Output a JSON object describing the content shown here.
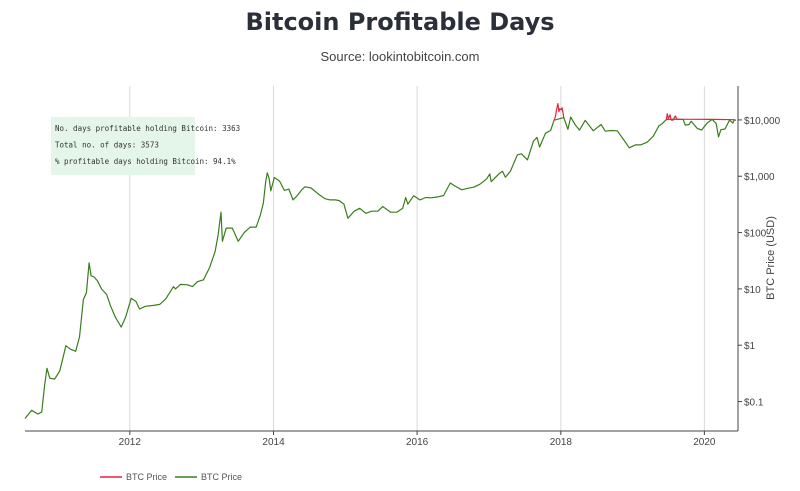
{
  "chart_data": {
    "type": "line",
    "title": "Bitcoin Profitable Days",
    "subtitle": "Source: lookintobitcoin.com",
    "xlabel": "",
    "ylabel": "BTC Price (USD)",
    "y_scale": "log",
    "xlim": [
      "2010-07-17",
      "2020-06-20"
    ],
    "ylim": [
      0.03,
      40000
    ],
    "x_ticks": [
      "2012",
      "2014",
      "2016",
      "2018",
      "2020"
    ],
    "y_ticks": [
      {
        "value": 0.1,
        "label": "$0.1"
      },
      {
        "value": 1,
        "label": "$1"
      },
      {
        "value": 10,
        "label": "$10"
      },
      {
        "value": 100,
        "label": "$100"
      },
      {
        "value": 1000,
        "label": "$1,000"
      },
      {
        "value": 10000,
        "label": "$10,000"
      }
    ],
    "grid": "vertical",
    "legend": "bottom-left",
    "series": [
      {
        "name": "BTC Price",
        "color": "#e8213f",
        "values": [
          [
            "2017-11-28",
            9900
          ],
          [
            "2017-12-05",
            11600
          ],
          [
            "2017-12-10",
            15000
          ],
          [
            "2017-12-17",
            19500
          ],
          [
            "2017-12-22",
            14000
          ],
          [
            "2017-12-27",
            15800
          ],
          [
            "2018-01-03",
            15100
          ],
          [
            "2018-01-07",
            16500
          ],
          [
            "2018-01-12",
            13500
          ],
          [
            "2018-01-16",
            11000
          ],
          [
            "2019-06-22",
            10200
          ],
          [
            "2019-06-26",
            12900
          ],
          [
            "2019-07-02",
            10600
          ],
          [
            "2019-07-10",
            12300
          ],
          [
            "2019-07-16",
            10000
          ],
          [
            "2019-07-25",
            9900
          ],
          [
            "2019-08-06",
            11800
          ],
          [
            "2019-08-15",
            10300
          ],
          [
            "2020-02-10",
            10200
          ],
          [
            "2020-06-01",
            10100
          ]
        ]
      },
      {
        "name": "BTC Price",
        "color": "#3a7d1e",
        "values": [
          [
            "2010-07-17",
            0.05
          ],
          [
            "2010-08-20",
            0.07
          ],
          [
            "2010-09-20",
            0.06
          ],
          [
            "2010-10-10",
            0.065
          ],
          [
            "2010-10-25",
            0.2
          ],
          [
            "2010-11-06",
            0.39
          ],
          [
            "2010-11-20",
            0.26
          ],
          [
            "2010-12-15",
            0.25
          ],
          [
            "2011-01-10",
            0.35
          ],
          [
            "2011-02-10",
            0.98
          ],
          [
            "2011-03-05",
            0.85
          ],
          [
            "2011-04-01",
            0.78
          ],
          [
            "2011-04-20",
            1.4
          ],
          [
            "2011-05-10",
            6.5
          ],
          [
            "2011-05-25",
            8.5
          ],
          [
            "2011-06-08",
            29
          ],
          [
            "2011-06-18",
            17
          ],
          [
            "2011-07-01",
            16.5
          ],
          [
            "2011-07-20",
            14
          ],
          [
            "2011-08-10",
            10
          ],
          [
            "2011-09-05",
            8
          ],
          [
            "2011-09-25",
            5
          ],
          [
            "2011-10-20",
            3.1
          ],
          [
            "2011-11-18",
            2.1
          ],
          [
            "2011-12-10",
            3.1
          ],
          [
            "2012-01-08",
            6.8
          ],
          [
            "2012-02-01",
            6
          ],
          [
            "2012-02-20",
            4.4
          ],
          [
            "2012-03-20",
            4.9
          ],
          [
            "2012-05-01",
            5.1
          ],
          [
            "2012-06-01",
            5.3
          ],
          [
            "2012-07-01",
            6.6
          ],
          [
            "2012-08-10",
            11
          ],
          [
            "2012-08-20",
            10
          ],
          [
            "2012-09-15",
            12
          ],
          [
            "2012-10-20",
            11.8
          ],
          [
            "2012-11-15",
            11
          ],
          [
            "2012-12-10",
            13.4
          ],
          [
            "2013-01-10",
            14.5
          ],
          [
            "2013-02-10",
            24
          ],
          [
            "2013-03-10",
            46
          ],
          [
            "2013-03-25",
            90
          ],
          [
            "2013-04-09",
            230
          ],
          [
            "2013-04-16",
            70
          ],
          [
            "2013-05-05",
            120
          ],
          [
            "2013-06-05",
            120
          ],
          [
            "2013-07-05",
            70
          ],
          [
            "2013-08-05",
            100
          ],
          [
            "2013-09-05",
            125
          ],
          [
            "2013-10-05",
            125
          ],
          [
            "2013-10-25",
            200
          ],
          [
            "2013-11-10",
            330
          ],
          [
            "2013-11-22",
            800
          ],
          [
            "2013-11-30",
            1150
          ],
          [
            "2013-12-10",
            900
          ],
          [
            "2013-12-18",
            550
          ],
          [
            "2014-01-05",
            950
          ],
          [
            "2014-02-01",
            820
          ],
          [
            "2014-02-25",
            560
          ],
          [
            "2014-03-20",
            590
          ],
          [
            "2014-04-10",
            380
          ],
          [
            "2014-05-01",
            450
          ],
          [
            "2014-05-25",
            580
          ],
          [
            "2014-06-10",
            650
          ],
          [
            "2014-07-10",
            620
          ],
          [
            "2014-08-18",
            480
          ],
          [
            "2014-09-20",
            400
          ],
          [
            "2014-10-15",
            380
          ],
          [
            "2014-11-12",
            380
          ],
          [
            "2014-12-01",
            370
          ],
          [
            "2014-12-25",
            320
          ],
          [
            "2015-01-14",
            180
          ],
          [
            "2015-02-15",
            240
          ],
          [
            "2015-03-15",
            270
          ],
          [
            "2015-04-15",
            220
          ],
          [
            "2015-05-15",
            240
          ],
          [
            "2015-06-15",
            240
          ],
          [
            "2015-07-10",
            290
          ],
          [
            "2015-08-20",
            230
          ],
          [
            "2015-09-20",
            230
          ],
          [
            "2015-10-20",
            270
          ],
          [
            "2015-11-04",
            420
          ],
          [
            "2015-11-15",
            320
          ],
          [
            "2015-12-15",
            450
          ],
          [
            "2016-01-15",
            380
          ],
          [
            "2016-02-15",
            420
          ],
          [
            "2016-03-15",
            415
          ],
          [
            "2016-04-15",
            430
          ],
          [
            "2016-05-15",
            455
          ],
          [
            "2016-06-18",
            760
          ],
          [
            "2016-07-15",
            660
          ],
          [
            "2016-08-15",
            575
          ],
          [
            "2016-09-15",
            610
          ],
          [
            "2016-10-15",
            640
          ],
          [
            "2016-11-15",
            720
          ],
          [
            "2016-12-20",
            900
          ],
          [
            "2017-01-05",
            1100
          ],
          [
            "2017-01-12",
            800
          ],
          [
            "2017-02-20",
            1100
          ],
          [
            "2017-03-10",
            1230
          ],
          [
            "2017-03-25",
            960
          ],
          [
            "2017-04-20",
            1240
          ],
          [
            "2017-05-25",
            2400
          ],
          [
            "2017-06-15",
            2500
          ],
          [
            "2017-07-15",
            1950
          ],
          [
            "2017-08-15",
            4200
          ],
          [
            "2017-09-02",
            4900
          ],
          [
            "2017-09-15",
            3300
          ],
          [
            "2017-10-15",
            5800
          ],
          [
            "2017-11-10",
            6500
          ],
          [
            "2017-11-28",
            9900
          ],
          [
            "2018-01-16",
            11000
          ],
          [
            "2018-02-06",
            6800
          ],
          [
            "2018-02-20",
            11200
          ],
          [
            "2018-03-15",
            8200
          ],
          [
            "2018-04-06",
            6600
          ],
          [
            "2018-05-05",
            9800
          ],
          [
            "2018-06-15",
            6400
          ],
          [
            "2018-07-25",
            8300
          ],
          [
            "2018-08-15",
            6300
          ],
          [
            "2018-09-15",
            6500
          ],
          [
            "2018-10-15",
            6400
          ],
          [
            "2018-11-20",
            4300
          ],
          [
            "2018-12-15",
            3200
          ],
          [
            "2019-01-15",
            3600
          ],
          [
            "2019-02-10",
            3600
          ],
          [
            "2019-03-15",
            4000
          ],
          [
            "2019-04-15",
            5100
          ],
          [
            "2019-05-15",
            7900
          ],
          [
            "2019-06-01",
            8600
          ],
          [
            "2019-06-22",
            10200
          ],
          [
            "2019-08-15",
            10300
          ],
          [
            "2019-09-15",
            10200
          ],
          [
            "2019-09-26",
            8100
          ],
          [
            "2019-10-15",
            8300
          ],
          [
            "2019-10-26",
            9500
          ],
          [
            "2019-11-25",
            7100
          ],
          [
            "2019-12-18",
            6600
          ],
          [
            "2020-01-15",
            8800
          ],
          [
            "2020-02-10",
            10200
          ],
          [
            "2020-03-01",
            8600
          ],
          [
            "2020-03-13",
            5000
          ],
          [
            "2020-03-25",
            6700
          ],
          [
            "2020-04-15",
            6900
          ],
          [
            "2020-05-08",
            9900
          ],
          [
            "2020-05-25",
            8800
          ],
          [
            "2020-06-01",
            10100
          ],
          [
            "2020-06-10",
            9750
          ]
        ]
      }
    ]
  },
  "annotation": {
    "lines": [
      "No. days profitable holding Bitcoin: 3363",
      "Total no. of days: 3573",
      "% profitable days holding Bitcoin: 94.1%"
    ]
  },
  "legend": [
    {
      "label": "BTC Price",
      "color": "#e8213f"
    },
    {
      "label": "BTC Price",
      "color": "#3a7d1e"
    }
  ]
}
